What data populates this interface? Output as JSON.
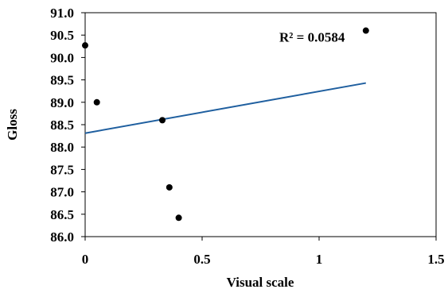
{
  "chart_data": {
    "type": "scatter",
    "xlabel": "Visual scale",
    "ylabel": "Gloss",
    "xlim": [
      0,
      1.5
    ],
    "ylim": [
      86.0,
      91.0
    ],
    "x_ticks": [
      "0",
      "0.5",
      "1",
      "1.5"
    ],
    "y_ticks": [
      "86.0",
      "86.5",
      "87.0",
      "87.5",
      "88.0",
      "88.5",
      "89.0",
      "89.5",
      "90.0",
      "90.5",
      "91.0"
    ],
    "grid": false,
    "legend": "none",
    "series": [
      {
        "points": [
          {
            "x": 0.0,
            "y": 90.27
          },
          {
            "x": 0.05,
            "y": 89.0
          },
          {
            "x": 0.33,
            "y": 88.6
          },
          {
            "x": 0.36,
            "y": 87.1
          },
          {
            "x": 0.4,
            "y": 86.42
          },
          {
            "x": 1.2,
            "y": 90.6
          }
        ]
      }
    ],
    "trendline": {
      "x": [
        0.0,
        1.2
      ],
      "y": [
        88.31,
        89.43
      ]
    },
    "annotation": "R² = 0.0584",
    "annotation_position": {
      "x": 0.97,
      "y": 90.35
    },
    "colors": {
      "marker": "#000000",
      "trendline": "#1f5f9f",
      "axis": "#000000"
    }
  }
}
